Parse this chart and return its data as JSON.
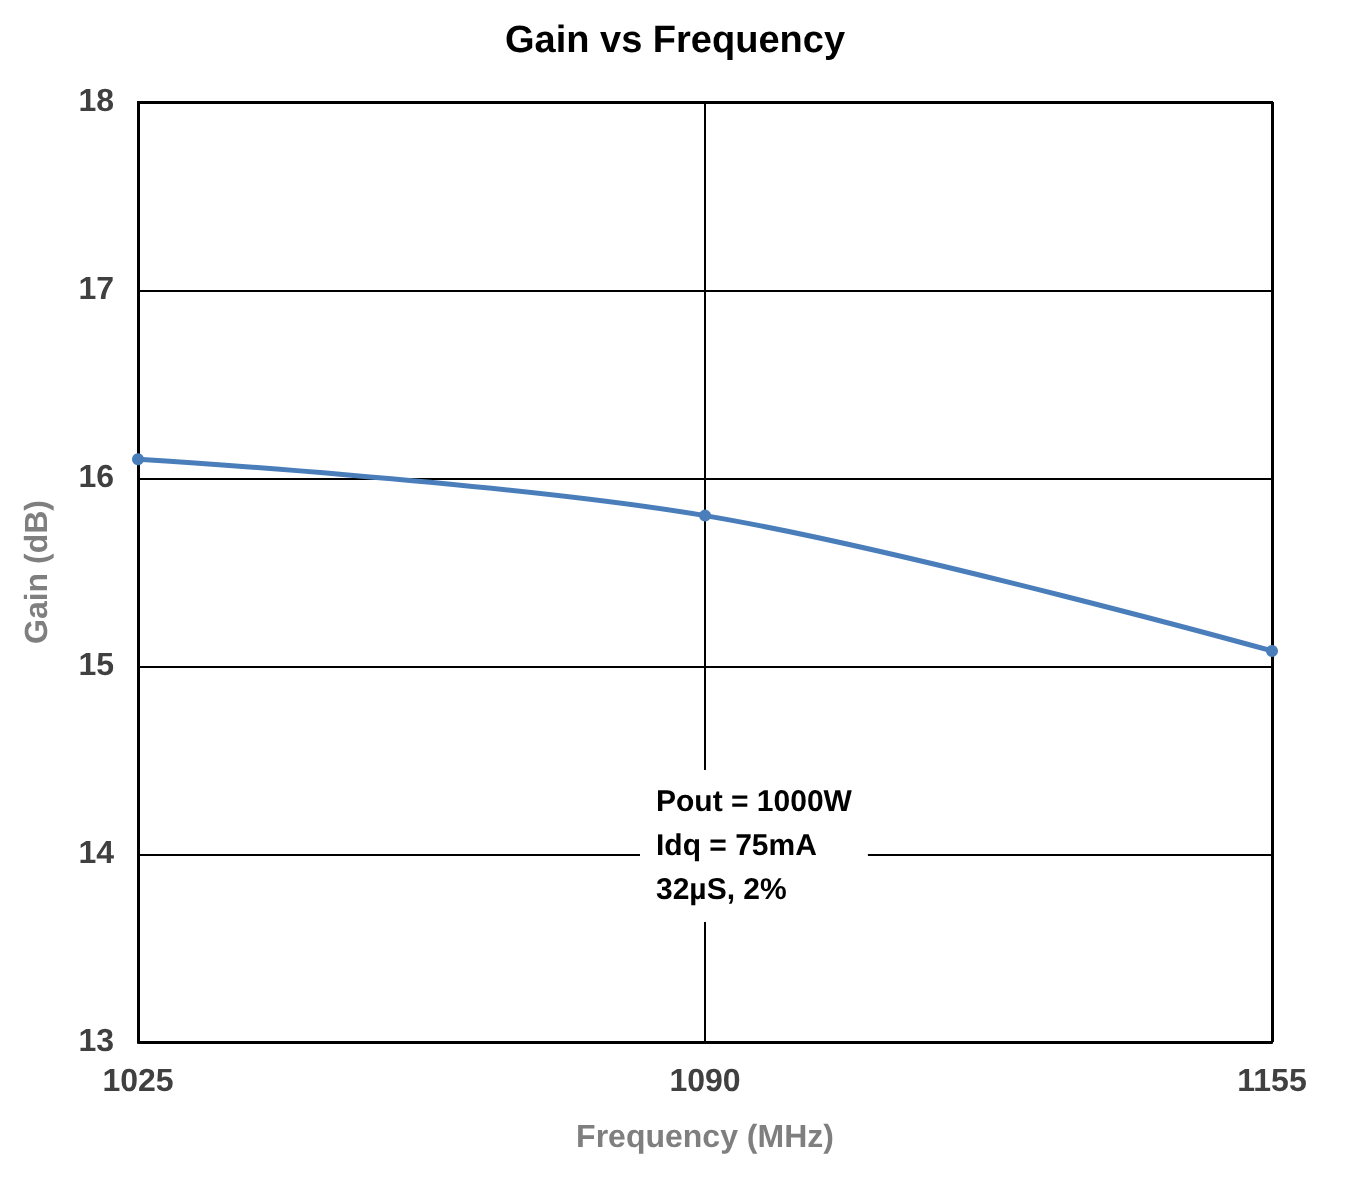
{
  "chart_data": {
    "type": "line",
    "title": "Gain vs Frequency",
    "xlabel": "Frequency (MHz)",
    "ylabel": "Gain (dB)",
    "x": [
      1025,
      1090,
      1155
    ],
    "series": [
      {
        "color": "#4a7ebb",
        "values": [
          16.1,
          15.8,
          15.08
        ]
      }
    ],
    "xlim": [
      1025,
      1155
    ],
    "xticks": [
      1025,
      1090,
      1155
    ],
    "ylim": [
      13,
      18
    ],
    "yticks": [
      13,
      14,
      15,
      16,
      17,
      18
    ],
    "grid": true,
    "marker": "circle",
    "line_style": "solid",
    "annotations": [
      "Pout = 1000W\nIdq = 75mA\n32µS, 2%"
    ]
  }
}
